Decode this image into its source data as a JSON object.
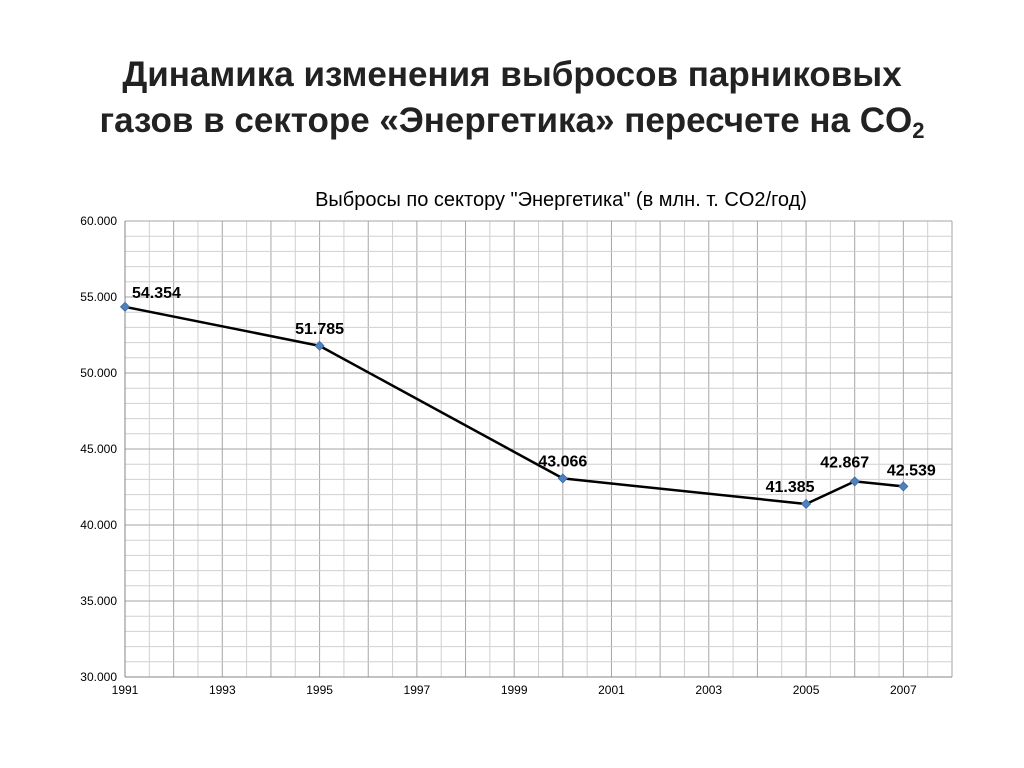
{
  "slide": {
    "title_line1": "Динамика изменения выбросов парниковых",
    "title_line2": "газов в секторе «Энергетика» пересчете на  CO",
    "title_subscript": "2"
  },
  "chart_data": {
    "type": "line",
    "title": "Выбросы по сектору \"Энергетика\" (в млн. т. CO2/год)",
    "xlabel": "",
    "ylabel": "",
    "xlim": [
      1991,
      2008
    ],
    "ylim": [
      30,
      60
    ],
    "x_ticks": [
      1991,
      1993,
      1995,
      1997,
      1999,
      2001,
      2003,
      2005,
      2007
    ],
    "x_tick_labels": [
      "1991",
      "1993",
      "1995",
      "1997",
      "1999",
      "2001",
      "2003",
      "2005",
      "2007"
    ],
    "y_ticks": [
      30,
      35,
      40,
      45,
      50,
      55,
      60
    ],
    "y_tick_labels": [
      "30.000",
      "35.000",
      "40.000",
      "45.000",
      "50.000",
      "55.000",
      "60.000"
    ],
    "grid": true,
    "legend": "none",
    "series": [
      {
        "x": [
          1991,
          1995,
          2000,
          2005,
          2006,
          2007
        ],
        "values": [
          54.354,
          51.785,
          43.066,
          41.385,
          42.867,
          42.539
        ],
        "labels": [
          "54.354",
          "51.785",
          "43.066",
          "41.385",
          "42.867",
          "42.539"
        ],
        "line_color": "#000000",
        "marker_color": "#4f81bd"
      }
    ]
  }
}
